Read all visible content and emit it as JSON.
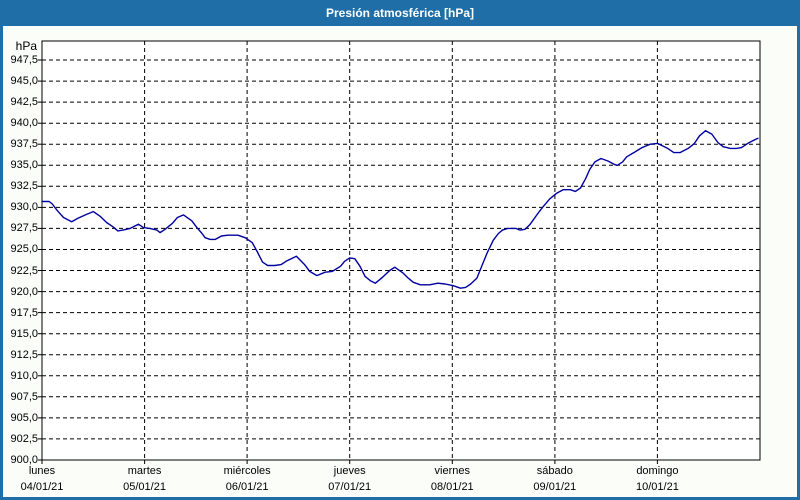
{
  "window": {
    "title": "Presión atmosférica [hPa]"
  },
  "colors": {
    "frame_blue": "#1f6ea7",
    "title_text": "#ffffff",
    "page_bg": "#fbfdf8",
    "plot_bg": "#ffffff",
    "grid": "#000000",
    "line": "#0000a0",
    "label_text": "#000000"
  },
  "y_axis": {
    "unit": "hPa",
    "tick_labels": [
      "947,5",
      "945,0",
      "942,5",
      "940,0",
      "937,5",
      "935,0",
      "932,5",
      "930,0",
      "927,5",
      "925,0",
      "922,5",
      "920,0",
      "917,5",
      "915,0",
      "912,5",
      "910,0",
      "907,5",
      "905,0",
      "902,5",
      "900,0"
    ]
  },
  "x_axis": {
    "days": [
      {
        "name": "lunes",
        "date": "04/01/21"
      },
      {
        "name": "martes",
        "date": "05/01/21"
      },
      {
        "name": "miércoles",
        "date": "06/01/21"
      },
      {
        "name": "jueves",
        "date": "07/01/21"
      },
      {
        "name": "viernes",
        "date": "08/01/21"
      },
      {
        "name": "sábado",
        "date": "09/01/21"
      },
      {
        "name": "domingo",
        "date": "10/01/21"
      }
    ]
  },
  "chart_data": {
    "type": "line",
    "title": "Presión atmosférica [hPa]",
    "xlabel": "",
    "ylabel": "hPa",
    "ylim": [
      900.0,
      947.5
    ],
    "y_tick_step": 2.5,
    "grid": true,
    "legend_position": "none",
    "x_categories": [
      "lunes 04/01/21",
      "martes 05/01/21",
      "miércoles 06/01/21",
      "jueves 07/01/21",
      "viernes 08/01/21",
      "sábado 09/01/21",
      "domingo 10/01/21"
    ],
    "x_unit": "days_from_monday_00h",
    "series": [
      {
        "name": "Presión atmosférica",
        "color": "#0000a0",
        "points": [
          [
            0.0,
            930.7
          ],
          [
            0.07,
            930.7
          ],
          [
            0.1,
            930.4
          ],
          [
            0.15,
            929.6
          ],
          [
            0.21,
            928.8
          ],
          [
            0.29,
            928.3
          ],
          [
            0.35,
            928.7
          ],
          [
            0.44,
            929.2
          ],
          [
            0.5,
            929.5
          ],
          [
            0.57,
            928.9
          ],
          [
            0.63,
            928.2
          ],
          [
            0.69,
            927.7
          ],
          [
            0.74,
            927.2
          ],
          [
            0.79,
            927.3
          ],
          [
            0.86,
            927.5
          ],
          [
            0.94,
            928.0
          ],
          [
            0.99,
            927.6
          ],
          [
            1.05,
            927.5
          ],
          [
            1.12,
            927.3
          ],
          [
            1.15,
            927.0
          ],
          [
            1.2,
            927.4
          ],
          [
            1.27,
            928.1
          ],
          [
            1.32,
            928.8
          ],
          [
            1.38,
            929.1
          ],
          [
            1.46,
            928.4
          ],
          [
            1.51,
            927.6
          ],
          [
            1.56,
            926.9
          ],
          [
            1.59,
            926.4
          ],
          [
            1.64,
            926.2
          ],
          [
            1.69,
            926.2
          ],
          [
            1.75,
            926.6
          ],
          [
            1.81,
            926.7
          ],
          [
            1.91,
            926.7
          ],
          [
            1.98,
            926.4
          ],
          [
            2.05,
            925.8
          ],
          [
            2.1,
            924.7
          ],
          [
            2.15,
            923.5
          ],
          [
            2.2,
            923.1
          ],
          [
            2.27,
            923.1
          ],
          [
            2.33,
            923.2
          ],
          [
            2.38,
            923.6
          ],
          [
            2.43,
            923.9
          ],
          [
            2.48,
            924.2
          ],
          [
            2.56,
            923.2
          ],
          [
            2.61,
            922.4
          ],
          [
            2.68,
            921.9
          ],
          [
            2.76,
            922.3
          ],
          [
            2.83,
            922.4
          ],
          [
            2.91,
            923.0
          ],
          [
            2.95,
            923.6
          ],
          [
            3.0,
            924.0
          ],
          [
            3.05,
            923.9
          ],
          [
            3.1,
            923.0
          ],
          [
            3.15,
            921.8
          ],
          [
            3.2,
            921.3
          ],
          [
            3.25,
            921.0
          ],
          [
            3.32,
            921.7
          ],
          [
            3.39,
            922.5
          ],
          [
            3.44,
            922.9
          ],
          [
            3.52,
            922.2
          ],
          [
            3.57,
            921.6
          ],
          [
            3.62,
            921.1
          ],
          [
            3.69,
            920.8
          ],
          [
            3.78,
            920.8
          ],
          [
            3.86,
            921.0
          ],
          [
            3.93,
            920.9
          ],
          [
            4.01,
            920.7
          ],
          [
            4.08,
            920.4
          ],
          [
            4.13,
            920.5
          ],
          [
            4.18,
            920.9
          ],
          [
            4.24,
            921.6
          ],
          [
            4.28,
            922.8
          ],
          [
            4.34,
            924.6
          ],
          [
            4.4,
            926.1
          ],
          [
            4.45,
            926.9
          ],
          [
            4.49,
            927.3
          ],
          [
            4.54,
            927.5
          ],
          [
            4.62,
            927.5
          ],
          [
            4.66,
            927.3
          ],
          [
            4.71,
            927.4
          ],
          [
            4.76,
            928.0
          ],
          [
            4.83,
            929.2
          ],
          [
            4.88,
            930.0
          ],
          [
            4.95,
            931.0
          ],
          [
            5.02,
            931.7
          ],
          [
            5.08,
            932.1
          ],
          [
            5.15,
            932.1
          ],
          [
            5.2,
            931.9
          ],
          [
            5.25,
            932.3
          ],
          [
            5.3,
            933.4
          ],
          [
            5.34,
            934.5
          ],
          [
            5.39,
            935.4
          ],
          [
            5.45,
            935.8
          ],
          [
            5.52,
            935.5
          ],
          [
            5.58,
            935.1
          ],
          [
            5.61,
            935.0
          ],
          [
            5.66,
            935.4
          ],
          [
            5.7,
            936.0
          ],
          [
            5.77,
            936.5
          ],
          [
            5.85,
            937.1
          ],
          [
            5.93,
            937.5
          ],
          [
            6.0,
            937.6
          ],
          [
            6.05,
            937.3
          ],
          [
            6.1,
            937.0
          ],
          [
            6.16,
            936.5
          ],
          [
            6.22,
            936.5
          ],
          [
            6.3,
            937.0
          ],
          [
            6.36,
            937.6
          ],
          [
            6.41,
            938.5
          ],
          [
            6.47,
            939.1
          ],
          [
            6.53,
            938.7
          ],
          [
            6.59,
            937.7
          ],
          [
            6.64,
            937.2
          ],
          [
            6.71,
            937.0
          ],
          [
            6.77,
            937.0
          ],
          [
            6.82,
            937.1
          ],
          [
            6.88,
            937.6
          ],
          [
            6.93,
            937.9
          ],
          [
            6.98,
            938.2
          ]
        ]
      }
    ]
  }
}
